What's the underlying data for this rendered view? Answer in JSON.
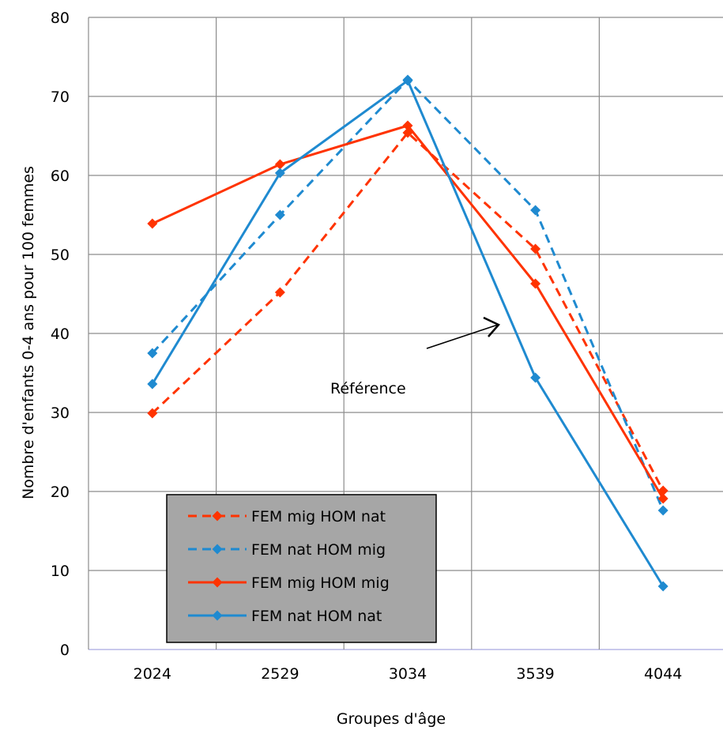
{
  "chart_data": {
    "type": "line",
    "title": "",
    "xlabel": "Groupes d'âge",
    "ylabel": "Nombre d'enfants 0-4 ans pour 100 femmes",
    "categories": [
      "2024",
      "2529",
      "3034",
      "3539",
      "4044"
    ],
    "ylim": [
      0,
      80
    ],
    "yticks": [
      0,
      10,
      20,
      30,
      40,
      50,
      60,
      70,
      80
    ],
    "grid": true,
    "legend_position": "bottom-left",
    "series": [
      {
        "name": "FEM mig HOM nat",
        "values": [
          29.9,
          45.2,
          65.4,
          50.7,
          20.1
        ],
        "color": "#ff3300",
        "dash": true
      },
      {
        "name": "FEM nat HOM mig",
        "values": [
          37.5,
          55.0,
          72.1,
          55.6,
          17.6
        ],
        "color": "#1f8ad0",
        "dash": true
      },
      {
        "name": "FEM mig HOM mig",
        "values": [
          53.9,
          61.4,
          66.3,
          46.3,
          19.1
        ],
        "color": "#ff3300",
        "dash": false
      },
      {
        "name": "FEM nat HOM nat",
        "values": [
          33.6,
          60.3,
          72.0,
          34.4,
          8.0
        ],
        "color": "#1f8ad0",
        "dash": false
      }
    ],
    "annotation": {
      "text": "Référence",
      "x": "3539",
      "y": 40.5
    }
  }
}
